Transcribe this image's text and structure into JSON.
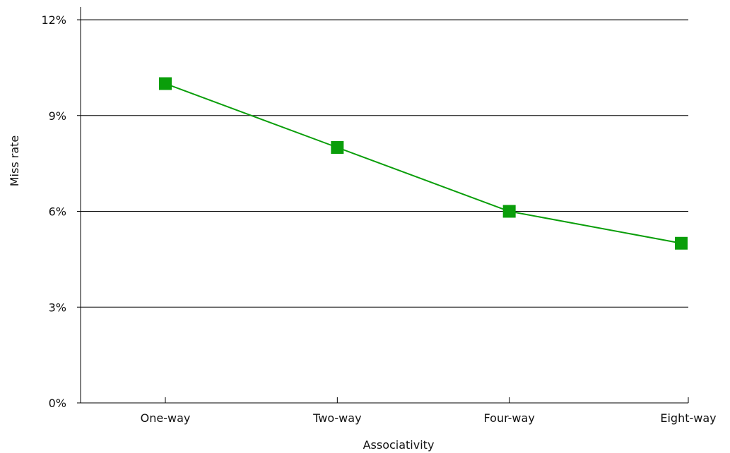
{
  "chart_data": {
    "type": "line",
    "title": "",
    "xlabel": "Associativity",
    "ylabel": "Miss rate",
    "categories": [
      "One-way",
      "Two-way",
      "Four-way",
      "Eight-way"
    ],
    "series": [
      {
        "values": [
          10,
          8,
          6,
          5
        ],
        "color": "#0a9e0a",
        "marker": "square"
      }
    ],
    "ylim": [
      0,
      12
    ],
    "yticks": [
      0,
      3,
      6,
      9,
      12
    ],
    "ytick_labels": [
      "0%",
      "3%",
      "6%",
      "9%",
      "12%"
    ],
    "grid": "horizontal",
    "legend": "none"
  }
}
